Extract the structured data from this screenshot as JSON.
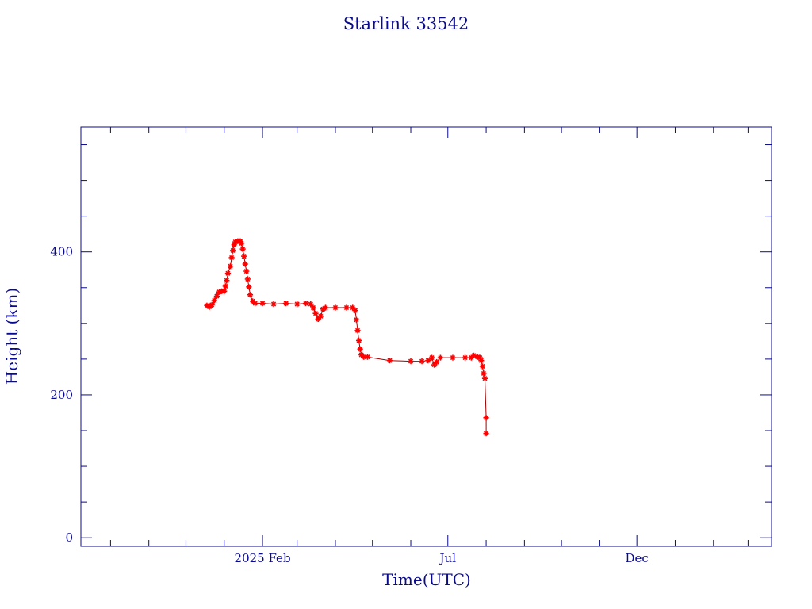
{
  "chart_data": {
    "type": "line",
    "title": "Starlink 33542",
    "xlabel": "Time(UTC)",
    "ylabel": "Height (km)",
    "x_ticks": [
      {
        "date": "2025-02-01",
        "label": "2025 Feb"
      },
      {
        "date": "2025-07-01",
        "label": "Jul"
      },
      {
        "date": "2025-12-01",
        "label": "Dec"
      }
    ],
    "y_ticks": [
      0,
      200,
      400
    ],
    "xlim": [
      "2024-09-07",
      "2026-03-20"
    ],
    "ylim": [
      -12,
      575
    ],
    "grid": false,
    "colors": {
      "axis": "#0a0a8c",
      "line": "#a00000",
      "marker": "#ff0000",
      "highlight": "#00c8c8"
    },
    "series": [
      {
        "points": [
          [
            "2024-12-18",
            325
          ],
          [
            "2024-12-20",
            323
          ],
          [
            "2024-12-22",
            326
          ],
          [
            "2024-12-24",
            332
          ],
          [
            "2024-12-26",
            338
          ],
          [
            "2024-12-28",
            344
          ],
          [
            "2024-12-30",
            345
          ],
          [
            "2025-01-01",
            345
          ],
          [
            "2025-01-02",
            352
          ],
          [
            "2025-01-03",
            360
          ],
          [
            "2025-01-04",
            370
          ],
          [
            "2025-01-06",
            380
          ],
          [
            "2025-01-07",
            392
          ],
          [
            "2025-01-08",
            402
          ],
          [
            "2025-01-09",
            410
          ],
          [
            "2025-01-10",
            414
          ],
          [
            "2025-01-12",
            415
          ],
          [
            "2025-01-14",
            415
          ],
          [
            "2025-01-15",
            412
          ],
          [
            "2025-01-16",
            404
          ],
          [
            "2025-01-17",
            394
          ],
          [
            "2025-01-18",
            383
          ],
          [
            "2025-01-19",
            373
          ],
          [
            "2025-01-20",
            362
          ],
          [
            "2025-01-21",
            351
          ],
          [
            "2025-01-22",
            340
          ],
          [
            "2025-01-24",
            331
          ],
          [
            "2025-01-26",
            328
          ],
          [
            "2025-02-01",
            328
          ],
          [
            "2025-02-10",
            327
          ],
          [
            "2025-02-20",
            328
          ],
          [
            "2025-03-01",
            327
          ],
          [
            "2025-03-08",
            328
          ],
          [
            "2025-03-12",
            327
          ],
          [
            "2025-03-14",
            322
          ],
          [
            "2025-03-16",
            314
          ],
          [
            "2025-03-18",
            306
          ],
          [
            "2025-03-20",
            310
          ],
          [
            "2025-03-22",
            320
          ],
          [
            "2025-03-24",
            322
          ],
          [
            "2025-04-01",
            322
          ],
          [
            "2025-04-10",
            322
          ],
          [
            "2025-04-15",
            322
          ],
          [
            "2025-04-17",
            318
          ],
          [
            "2025-04-18",
            305
          ],
          [
            "2025-04-19",
            290
          ],
          [
            "2025-04-20",
            276
          ],
          [
            "2025-04-21",
            264
          ],
          [
            "2025-04-22",
            256
          ],
          [
            "2025-04-24",
            253
          ],
          [
            "2025-04-27",
            253
          ],
          [
            "2025-05-15",
            248
          ],
          [
            "2025-06-01",
            247
          ],
          [
            "2025-06-10",
            247
          ],
          [
            "2025-06-15",
            248
          ],
          [
            "2025-06-18",
            252
          ],
          [
            "2025-06-20",
            242
          ],
          [
            "2025-06-22",
            246
          ],
          [
            "2025-06-25",
            252
          ],
          [
            "2025-07-05",
            252
          ],
          [
            "2025-07-15",
            252
          ],
          [
            "2025-07-20",
            252
          ],
          [
            "2025-07-22",
            255
          ],
          [
            "2025-07-25",
            253
          ],
          [
            "2025-07-27",
            252
          ],
          [
            "2025-07-28",
            248
          ],
          [
            "2025-07-29",
            240
          ],
          [
            "2025-07-30",
            230
          ],
          [
            "2025-07-31",
            223
          ],
          [
            "2025-08-01",
            168
          ],
          [
            "2025-08-01",
            146
          ]
        ]
      }
    ]
  }
}
